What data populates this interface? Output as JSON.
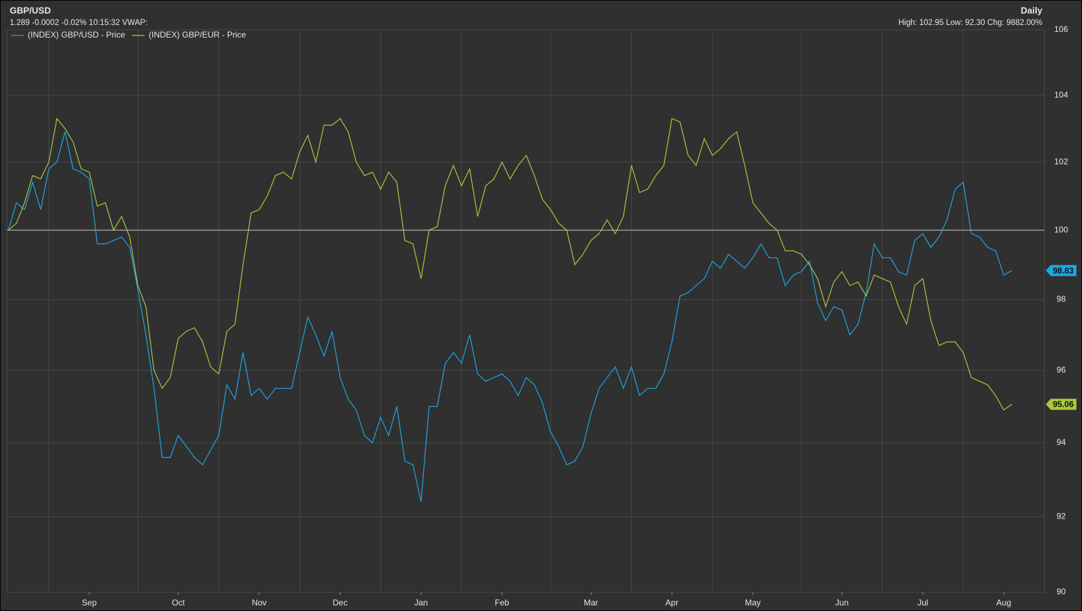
{
  "chart_data": {
    "type": "line",
    "title": "GBP/USD",
    "subtitle": "1.289 -0.0002 -0.02% 10:15:32 VWAP:",
    "interval": "Daily",
    "stats": "High: 102.95 Low: 92.30 Chg: 9882.00%",
    "log_scale": true,
    "grid": true,
    "baseline": 100,
    "ylim": [
      90,
      106
    ],
    "yticks": [
      90,
      92,
      94,
      96,
      98,
      100,
      102,
      104,
      106
    ],
    "categories": [
      null,
      null,
      null,
      null,
      null,
      null,
      null,
      null,
      null,
      null,
      "Sep",
      null,
      null,
      null,
      null,
      null,
      null,
      null,
      null,
      null,
      null,
      "Oct",
      null,
      null,
      null,
      null,
      null,
      null,
      null,
      null,
      null,
      "Nov",
      null,
      null,
      null,
      null,
      null,
      null,
      null,
      null,
      null,
      "Dec",
      null,
      null,
      null,
      null,
      null,
      null,
      null,
      null,
      null,
      "Jan",
      null,
      null,
      null,
      null,
      null,
      null,
      null,
      null,
      null,
      "Feb",
      null,
      null,
      null,
      null,
      null,
      null,
      null,
      null,
      null,
      null,
      "Mar",
      null,
      null,
      null,
      null,
      null,
      null,
      null,
      null,
      null,
      "Apr",
      null,
      null,
      null,
      null,
      null,
      null,
      null,
      null,
      null,
      "May",
      null,
      null,
      null,
      null,
      null,
      null,
      null,
      null,
      null,
      null,
      "Jun",
      null,
      null,
      null,
      null,
      null,
      null,
      null,
      null,
      null,
      "Jul",
      null,
      null,
      null,
      null,
      null,
      null,
      null,
      null,
      null,
      "Aug",
      null
    ],
    "series": [
      {
        "name": "(INDEX) GBP/USD - Price",
        "color": "#1ea6e4",
        "last_label": "98.83",
        "values": [
          100,
          100.8,
          100.6,
          101.4,
          100.6,
          101.8,
          102,
          102.9,
          101.8,
          101.7,
          101.5,
          99.6,
          99.6,
          99.7,
          99.8,
          99.5,
          98.3,
          97,
          95.5,
          93.6,
          93.6,
          94.2,
          93.9,
          93.6,
          93.4,
          93.8,
          94.2,
          95.6,
          95.2,
          96.5,
          95.3,
          95.5,
          95.2,
          95.5,
          95.5,
          95.5,
          96.5,
          97.5,
          97,
          96.4,
          97.1,
          95.8,
          95.2,
          94.9,
          94.2,
          94,
          94.7,
          94.2,
          95,
          93.5,
          93.4,
          92.4,
          95,
          95,
          96.2,
          96.5,
          96.2,
          97,
          95.9,
          95.7,
          95.8,
          95.9,
          95.7,
          95.3,
          95.8,
          95.6,
          95.1,
          94.3,
          93.9,
          93.4,
          93.5,
          93.9,
          94.8,
          95.5,
          95.8,
          96.1,
          95.5,
          96.1,
          95.3,
          95.5,
          95.5,
          95.9,
          96.8,
          98.1,
          98.2,
          98.4,
          98.6,
          99.1,
          98.9,
          99.3,
          99.1,
          98.9,
          99.2,
          99.6,
          99.2,
          99.2,
          98.4,
          98.7,
          98.8,
          99.1,
          97.9,
          97.4,
          97.8,
          97.7,
          97,
          97.3,
          98.2,
          99.6,
          99.2,
          99.2,
          98.8,
          98.7,
          99.7,
          99.9,
          99.5,
          99.8,
          100.3,
          101.2,
          101.4,
          99.9,
          99.8,
          99.5,
          99.4,
          98.7,
          98.83
        ]
      },
      {
        "name": "(INDEX) GBP/EUR - Price",
        "color": "#a9c93c",
        "last_label": "95.06",
        "values": [
          100,
          100.2,
          100.8,
          101.6,
          101.5,
          102,
          103.3,
          103,
          102.6,
          101.8,
          101.7,
          100.7,
          100.8,
          100,
          100.4,
          99.8,
          98.4,
          97.8,
          96,
          95.5,
          95.8,
          96.9,
          97.1,
          97.2,
          96.8,
          96.1,
          95.9,
          97.1,
          97.3,
          99,
          100.5,
          100.6,
          101,
          101.6,
          101.7,
          101.5,
          102.3,
          102.8,
          102,
          103.1,
          103.1,
          103.3,
          102.9,
          102,
          101.6,
          101.7,
          101.2,
          101.7,
          101.4,
          99.7,
          99.6,
          98.6,
          100,
          100.1,
          101.3,
          101.9,
          101.3,
          101.8,
          100.4,
          101.3,
          101.5,
          102,
          101.5,
          101.9,
          102.2,
          101.6,
          100.9,
          100.6,
          100.2,
          100,
          99,
          99.3,
          99.7,
          99.9,
          100.3,
          99.9,
          100.4,
          101.9,
          101.1,
          101.2,
          101.6,
          101.9,
          103.3,
          103.2,
          102.2,
          101.9,
          102.7,
          102.2,
          102.4,
          102.7,
          102.9,
          101.9,
          100.8,
          100.5,
          100.2,
          100,
          99.4,
          99.4,
          99.3,
          99,
          98.6,
          97.8,
          98.5,
          98.8,
          98.4,
          98.5,
          98.1,
          98.7,
          98.6,
          98.5,
          97.8,
          97.3,
          98.4,
          98.6,
          97.4,
          96.7,
          96.8,
          96.8,
          96.5,
          95.8,
          95.7,
          95.6,
          95.3,
          94.9,
          95.06
        ]
      }
    ]
  }
}
